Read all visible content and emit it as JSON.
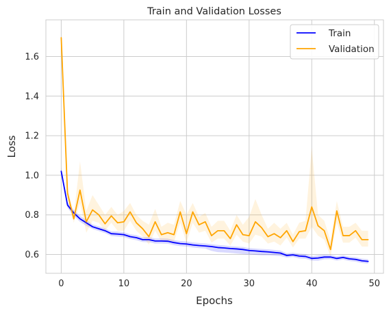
{
  "chart_data": {
    "type": "line",
    "title": "Train and Validation Losses",
    "xlabel": "Epochs",
    "ylabel": "Loss",
    "xlim": [
      -2.45,
      51.45
    ],
    "ylim": [
      0.505,
      1.785
    ],
    "xticks": [
      0,
      10,
      20,
      30,
      40,
      50
    ],
    "yticks": [
      0.6,
      0.8,
      1.0,
      1.2,
      1.4,
      1.6
    ],
    "grid": true,
    "legend_placement": "top-right",
    "x": [
      0,
      1,
      2,
      3,
      4,
      5,
      6,
      7,
      8,
      9,
      10,
      11,
      12,
      13,
      14,
      15,
      16,
      17,
      18,
      19,
      20,
      21,
      22,
      23,
      24,
      25,
      26,
      27,
      28,
      29,
      30,
      31,
      32,
      33,
      34,
      35,
      36,
      37,
      38,
      39,
      40,
      41,
      42,
      43,
      44,
      45,
      46,
      47,
      48,
      49
    ],
    "series": [
      {
        "name": "Train",
        "color": "#0000ff",
        "band_color": "#0000ff",
        "values": [
          1.02,
          0.85,
          0.81,
          0.78,
          0.76,
          0.74,
          0.73,
          0.72,
          0.705,
          0.703,
          0.7,
          0.69,
          0.685,
          0.675,
          0.675,
          0.668,
          0.668,
          0.667,
          0.66,
          0.655,
          0.653,
          0.648,
          0.645,
          0.643,
          0.64,
          0.635,
          0.633,
          0.63,
          0.628,
          0.625,
          0.62,
          0.618,
          0.615,
          0.613,
          0.61,
          0.607,
          0.595,
          0.598,
          0.592,
          0.59,
          0.58,
          0.582,
          0.587,
          0.587,
          0.58,
          0.585,
          0.578,
          0.575,
          0.568,
          0.565
        ],
        "lower": [
          1.0,
          0.835,
          0.795,
          0.765,
          0.745,
          0.728,
          0.718,
          0.708,
          0.693,
          0.69,
          0.688,
          0.678,
          0.672,
          0.663,
          0.662,
          0.655,
          0.655,
          0.654,
          0.647,
          0.642,
          0.64,
          0.635,
          0.632,
          0.63,
          0.618,
          0.612,
          0.61,
          0.608,
          0.605,
          0.602,
          0.6,
          0.598,
          0.596,
          0.596,
          0.594,
          0.592,
          0.584,
          0.587,
          0.58,
          0.578,
          0.569,
          0.568,
          0.575,
          0.576,
          0.569,
          0.574,
          0.567,
          0.564,
          0.557,
          0.554
        ],
        "upper": [
          1.04,
          0.865,
          0.825,
          0.795,
          0.775,
          0.752,
          0.742,
          0.732,
          0.717,
          0.716,
          0.712,
          0.702,
          0.698,
          0.687,
          0.688,
          0.681,
          0.681,
          0.68,
          0.673,
          0.668,
          0.666,
          0.661,
          0.658,
          0.656,
          0.652,
          0.648,
          0.646,
          0.642,
          0.64,
          0.638,
          0.632,
          0.63,
          0.628,
          0.626,
          0.623,
          0.62,
          0.606,
          0.609,
          0.604,
          0.602,
          0.591,
          0.596,
          0.599,
          0.598,
          0.591,
          0.596,
          0.589,
          0.586,
          0.579,
          0.576
        ]
      },
      {
        "name": "Validation",
        "color": "#ffa500",
        "band_color": "#ffa500",
        "values": [
          1.695,
          0.91,
          0.78,
          0.925,
          0.765,
          0.825,
          0.8,
          0.755,
          0.795,
          0.76,
          0.765,
          0.815,
          0.76,
          0.73,
          0.69,
          0.765,
          0.7,
          0.71,
          0.7,
          0.815,
          0.705,
          0.815,
          0.75,
          0.765,
          0.695,
          0.72,
          0.72,
          0.68,
          0.75,
          0.7,
          0.695,
          0.765,
          0.735,
          0.69,
          0.705,
          0.685,
          0.72,
          0.665,
          0.715,
          0.72,
          0.84,
          0.745,
          0.72,
          0.625,
          0.82,
          0.695,
          0.695,
          0.72,
          0.675,
          0.675
        ],
        "lower": [
          1.69,
          0.88,
          0.76,
          0.86,
          0.71,
          0.77,
          0.76,
          0.72,
          0.76,
          0.72,
          0.72,
          0.77,
          0.72,
          0.69,
          0.65,
          0.72,
          0.665,
          0.67,
          0.665,
          0.76,
          0.66,
          0.76,
          0.71,
          0.72,
          0.66,
          0.68,
          0.68,
          0.645,
          0.7,
          0.665,
          0.655,
          0.7,
          0.69,
          0.655,
          0.665,
          0.645,
          0.685,
          0.635,
          0.68,
          0.68,
          0.74,
          0.695,
          0.675,
          0.59,
          0.76,
          0.66,
          0.66,
          0.685,
          0.64,
          0.64
        ],
        "upper": [
          1.7,
          0.94,
          0.8,
          1.07,
          0.82,
          0.9,
          0.85,
          0.8,
          0.84,
          0.8,
          0.82,
          0.86,
          0.8,
          0.77,
          0.75,
          0.83,
          0.74,
          0.76,
          0.75,
          0.87,
          0.8,
          0.86,
          0.79,
          0.81,
          0.74,
          0.77,
          0.77,
          0.72,
          0.8,
          0.75,
          0.79,
          0.88,
          0.8,
          0.73,
          0.76,
          0.73,
          0.76,
          0.7,
          0.76,
          0.77,
          1.14,
          0.8,
          0.77,
          0.67,
          0.87,
          0.74,
          0.74,
          0.76,
          0.72,
          0.72
        ]
      }
    ]
  }
}
